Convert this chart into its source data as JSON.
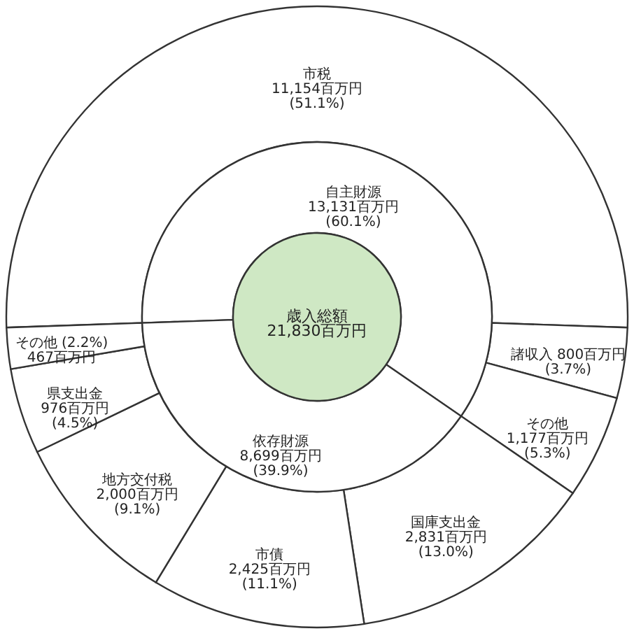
{
  "chart_data": [
    {
      "type": "donut",
      "categories": [
        "市税",
        "諸収入",
        "その他",
        "国庫支出金",
        "市債",
        "地方交付税",
        "県支出金",
        "その他"
      ],
      "values": [
        11154,
        800,
        1177,
        2831,
        2425,
        2000,
        976,
        467
      ],
      "colors": [
        "#ffffff",
        "#ffffff",
        "#ffffff",
        "#ffffff",
        "#ffffff",
        "#ffffff",
        "#ffffff",
        "#ffffff"
      ],
      "value_labels": [
        "11,154百万円\n(51.1%)",
        "800百万円\n(3.7%)",
        "1,177百万円\n(5.3%)",
        "2,831百万円\n(13.0%)",
        "2,425百万円\n(11.1%)",
        "2,000百万円\n(9.1%)",
        "976百万円\n(4.5%)",
        "(2.2%)\n467百万円"
      ]
    },
    {
      "type": "donut",
      "categories": [
        "自主財源",
        "依存財源"
      ],
      "values": [
        13131,
        8699
      ],
      "colors": [
        "#ffffff",
        "#ffffff"
      ],
      "value_labels": [
        "13,131百万円\n(60.1%)",
        "8,699百万円\n(39.9%)"
      ]
    },
    {
      "type": "pie",
      "categories": [
        "歳入総額"
      ],
      "values": [
        21830
      ],
      "colors": [
        "#cfe8c4"
      ],
      "value_labels": [
        "21,830百万円"
      ]
    }
  ]
}
